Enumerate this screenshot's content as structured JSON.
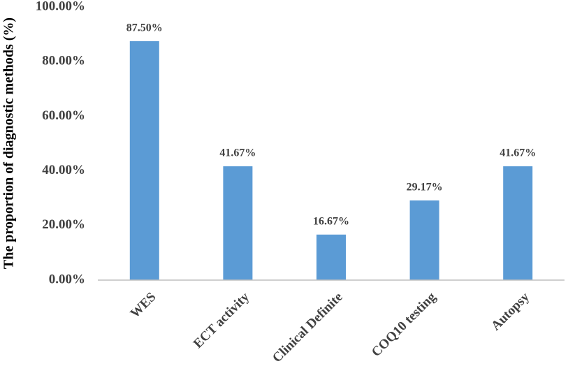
{
  "chart_data": {
    "type": "bar",
    "y_label": "The proportion of diagnostic methods (%)",
    "categories": [
      "WES",
      "ECT activity",
      "Clinical Definite",
      "COQ10 testing",
      "Autopsy"
    ],
    "values": [
      87.5,
      41.67,
      16.67,
      29.17,
      41.67
    ],
    "value_labels": [
      "87.50%",
      "41.67%",
      "16.67%",
      "29.17%",
      "41.67%"
    ],
    "color": "#5b9bd5",
    "ylim": [
      0,
      100
    ],
    "yticks": [
      {
        "value": 0,
        "label": "0.00%"
      },
      {
        "value": 20,
        "label": "20.00%"
      },
      {
        "value": 40,
        "label": "40.00%"
      },
      {
        "value": 60,
        "label": "60.00%"
      },
      {
        "value": 80,
        "label": "80.00%"
      },
      {
        "value": 100,
        "label": "100.00%"
      }
    ],
    "grid": false
  }
}
